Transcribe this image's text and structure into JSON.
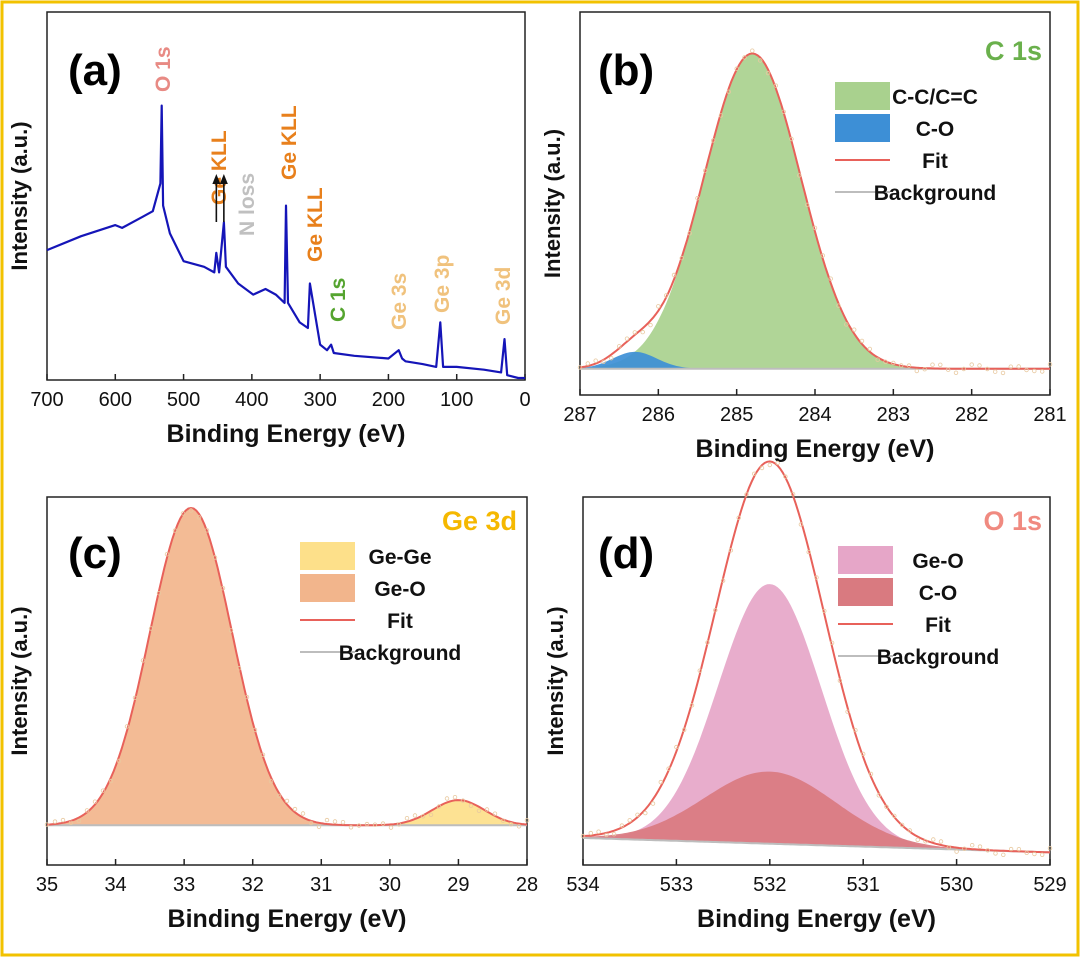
{
  "figure": {
    "border_color": "#f2c200"
  },
  "panels": [
    {
      "id": "a",
      "tag": "(a)",
      "xlabel": "Binding Energy (eV)",
      "ylabel": "Intensity (a.u.)",
      "xlim": [
        700,
        0
      ],
      "xticks": [
        "700",
        "600",
        "500",
        "400",
        "300",
        "200",
        "100",
        "0"
      ],
      "xtick_values": [
        700,
        600,
        500,
        400,
        300,
        200,
        100,
        0
      ],
      "line_color": "#1515b8",
      "annotations": [
        {
          "text": "O 1s",
          "color": "#e88a84",
          "energy": 532
        },
        {
          "text": "Ge KLL",
          "color": "#e8801c",
          "energy": 440
        },
        {
          "text": "N loss",
          "color": "#c0c0c0",
          "energy": 398
        },
        {
          "text": "Ge KLL",
          "color": "#e8801c",
          "energy": 350
        },
        {
          "text": "Ge KLL",
          "color": "#e8801c",
          "energy": 302
        },
        {
          "text": "C 1s",
          "color": "#55a42f",
          "energy": 284
        },
        {
          "text": "Ge 3s",
          "color": "#f0c27d",
          "energy": 180
        },
        {
          "text": "Ge 3p",
          "color": "#f0c27d",
          "energy": 124
        },
        {
          "text": "Ge 3d",
          "color": "#f0c27d",
          "energy": 30
        }
      ],
      "arrow_energies": [
        452,
        441
      ]
    },
    {
      "id": "b",
      "tag": "(b)",
      "title": "C 1s",
      "title_color": "#6ab04c",
      "xlabel": "Binding Energy (eV)",
      "ylabel": "Intensity (a.u.)",
      "xlim": [
        287,
        281
      ],
      "xticks": [
        "287",
        "286",
        "285",
        "284",
        "283",
        "282",
        "281"
      ],
      "xtick_values": [
        287,
        286,
        285,
        284,
        283,
        282,
        281
      ],
      "legend": [
        {
          "label": "C-C/C=C",
          "kind": "fill",
          "color": "#a9d18e"
        },
        {
          "label": "C-O",
          "kind": "fill",
          "color": "#3d8fd6"
        },
        {
          "label": "Fit",
          "kind": "line",
          "color": "#e8615a"
        },
        {
          "label": "Background",
          "kind": "line",
          "color": "#bdbdbd"
        }
      ],
      "components": [
        {
          "name": "C-C/C=C",
          "center": 284.8,
          "height": 0.84,
          "width": 0.62,
          "color": "#a9d18e"
        },
        {
          "name": "C-O",
          "center": 286.3,
          "height": 0.045,
          "width": 0.28,
          "color": "#3d8fd6"
        }
      ]
    },
    {
      "id": "c",
      "tag": "(c)",
      "title": "Ge 3d",
      "title_color": "#f5b800",
      "xlabel": "Binding Energy (eV)",
      "ylabel": "Intensity (a.u.)",
      "xlim": [
        35,
        28
      ],
      "xticks": [
        "35",
        "34",
        "33",
        "32",
        "31",
        "30",
        "29",
        "28"
      ],
      "xtick_values": [
        35,
        34,
        33,
        32,
        31,
        30,
        29,
        28
      ],
      "legend": [
        {
          "label": "Ge-Ge",
          "kind": "fill",
          "color": "#fde08a"
        },
        {
          "label": "Ge-O",
          "kind": "fill",
          "color": "#f2b58c"
        },
        {
          "label": "Fit",
          "kind": "line",
          "color": "#e8615a"
        },
        {
          "label": "Background",
          "kind": "line",
          "color": "#bdbdbd"
        }
      ],
      "components": [
        {
          "name": "Ge-O",
          "center": 32.9,
          "height": 0.88,
          "width": 0.6,
          "color": "#f2b58c"
        },
        {
          "name": "Ge-Ge",
          "center": 29.0,
          "height": 0.07,
          "width": 0.38,
          "color": "#fde08a"
        }
      ]
    },
    {
      "id": "d",
      "tag": "(d)",
      "title": "O 1s",
      "title_color": "#f08a80",
      "xlabel": "Binding Energy (eV)",
      "ylabel": "Intensity (a.u.)",
      "xlim": [
        534,
        529
      ],
      "xticks": [
        "534",
        "533",
        "532",
        "531",
        "530",
        "529"
      ],
      "xtick_values": [
        534,
        533,
        532,
        531,
        530,
        529
      ],
      "legend": [
        {
          "label": "Ge-O",
          "kind": "fill",
          "color": "#e6a6c8"
        },
        {
          "label": "C-O",
          "kind": "fill",
          "color": "#d97a80"
        },
        {
          "label": "Fit",
          "kind": "line",
          "color": "#e8615a"
        },
        {
          "label": "Background",
          "kind": "line",
          "color": "#bdbdbd"
        }
      ],
      "components": [
        {
          "name": "Ge-O",
          "center": 532.0,
          "height": 0.72,
          "width": 0.55,
          "color": "#e6a6c8"
        },
        {
          "name": "C-O",
          "center": 532.0,
          "height": 0.2,
          "width": 0.7,
          "color": "#d97a80"
        }
      ]
    }
  ],
  "chart_data": [
    {
      "type": "line",
      "title": "(a)",
      "xlabel": "Binding Energy (eV)",
      "ylabel": "Intensity (a.u.)",
      "xlim": [
        700,
        0
      ],
      "series": [
        {
          "name": "survey",
          "x": [
            700,
            650,
            600,
            590,
            560,
            545,
            534,
            532,
            530,
            520,
            500,
            470,
            455,
            452,
            448,
            441,
            438,
            420,
            398,
            380,
            365,
            352,
            350,
            347,
            330,
            318,
            315,
            300,
            290,
            284,
            280,
            250,
            200,
            185,
            180,
            175,
            150,
            130,
            124,
            120,
            100,
            60,
            35,
            30,
            26,
            10,
            0
          ],
          "y": [
            0.46,
            0.51,
            0.55,
            0.54,
            0.58,
            0.6,
            0.7,
            0.98,
            0.62,
            0.52,
            0.42,
            0.4,
            0.38,
            0.45,
            0.38,
            0.56,
            0.4,
            0.34,
            0.3,
            0.32,
            0.3,
            0.27,
            0.62,
            0.27,
            0.2,
            0.18,
            0.34,
            0.12,
            0.1,
            0.12,
            0.09,
            0.08,
            0.07,
            0.1,
            0.07,
            0.06,
            0.05,
            0.04,
            0.2,
            0.04,
            0.04,
            0.03,
            0.02,
            0.14,
            0.01,
            0.0,
            0.0
          ]
        }
      ],
      "annotations": [
        "O 1s",
        "Ge KLL",
        "N loss",
        "Ge KLL",
        "Ge KLL",
        "C 1s",
        "Ge 3s",
        "Ge 3p",
        "Ge 3d"
      ]
    },
    {
      "type": "area",
      "title": "C 1s",
      "xlabel": "Binding Energy (eV)",
      "ylabel": "Intensity (a.u.)",
      "xlim": [
        287,
        281
      ],
      "series": [
        {
          "name": "C-C/C=C",
          "center": 284.8,
          "relative_height": 0.84
        },
        {
          "name": "C-O",
          "center": 286.3,
          "relative_height": 0.045
        },
        {
          "name": "Fit"
        },
        {
          "name": "Background"
        }
      ]
    },
    {
      "type": "area",
      "title": "Ge 3d",
      "xlabel": "Binding Energy (eV)",
      "ylabel": "Intensity (a.u.)",
      "xlim": [
        35,
        28
      ],
      "series": [
        {
          "name": "Ge-Ge",
          "center": 29.0,
          "relative_height": 0.07
        },
        {
          "name": "Ge-O",
          "center": 32.9,
          "relative_height": 0.88
        },
        {
          "name": "Fit"
        },
        {
          "name": "Background"
        }
      ]
    },
    {
      "type": "area",
      "title": "O 1s",
      "xlabel": "Binding Energy (eV)",
      "ylabel": "Intensity (a.u.)",
      "xlim": [
        534,
        529
      ],
      "series": [
        {
          "name": "Ge-O",
          "center": 532.0,
          "relative_height": 0.72
        },
        {
          "name": "C-O",
          "center": 532.0,
          "relative_height": 0.2
        },
        {
          "name": "Fit"
        },
        {
          "name": "Background"
        }
      ]
    }
  ]
}
